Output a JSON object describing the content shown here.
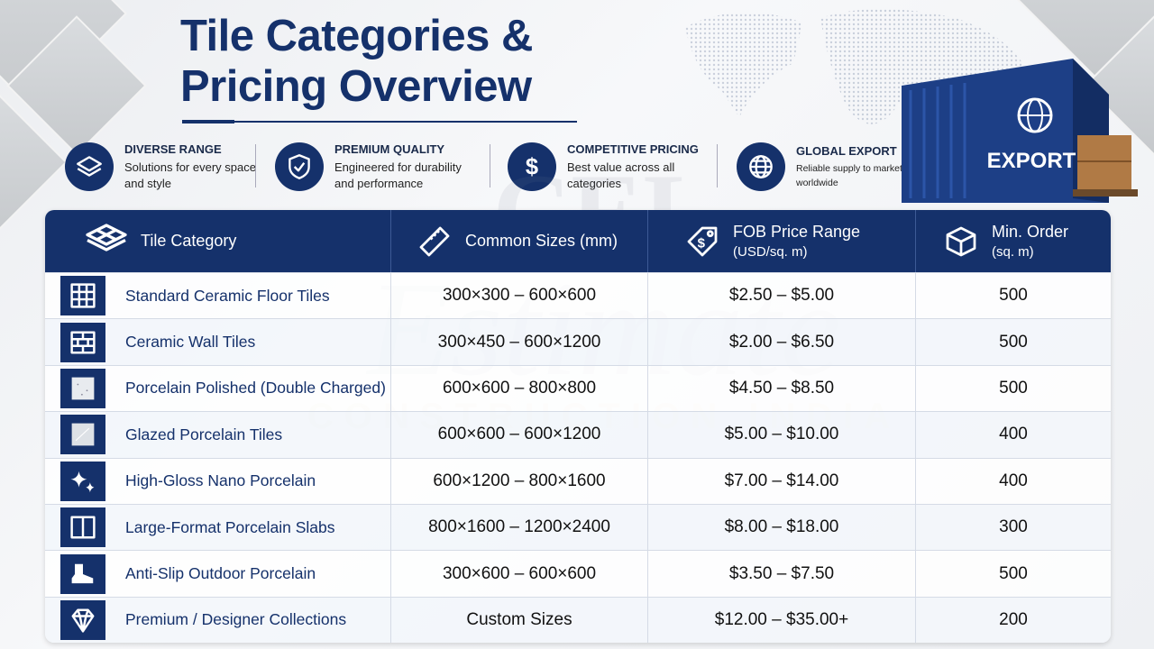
{
  "header": {
    "title": "Tile Categories & Pricing Overview"
  },
  "features": [
    {
      "title": "DIVERSE RANGE",
      "text": "Solutions for every space and style"
    },
    {
      "title": "PREMIUM QUALITY",
      "text": "Engineered for durability and performance"
    },
    {
      "title": "COMPETITIVE PRICING",
      "text": "Best value across all categories"
    },
    {
      "title": "GLOBAL EXPORT",
      "text": "Reliable supply to markets worldwide"
    }
  ],
  "container_label": "EXPORT",
  "watermark": {
    "brand": "CEL",
    "name": "Estimate",
    "tagline": "CONSTRUCTION INDIA"
  },
  "table": {
    "headers": [
      {
        "title": "Tile Category"
      },
      {
        "title": "Common Sizes (mm)"
      },
      {
        "title": "FOB Price Range",
        "sub": "(USD/sq. m)"
      },
      {
        "title": "Min. Order",
        "sub": "(sq. m)"
      }
    ],
    "rows": [
      [
        "Standard Ceramic Floor Tiles",
        "300×300 – 600×600",
        "$2.50 – $5.00",
        500
      ],
      [
        "Ceramic Wall Tiles",
        "300×450 – 600×1200",
        "$2.00 – $6.50",
        500
      ],
      [
        "Porcelain Polished (Double Charged)",
        "600×600 – 800×800",
        "$4.50 – $8.50",
        500
      ],
      [
        "Glazed Porcelain Tiles",
        "600×600 – 600×1200",
        "$5.00 – $10.00",
        400
      ],
      [
        "High-Gloss Nano Porcelain",
        "600×1200 – 800×1600",
        "$7.00 – $14.00",
        400
      ],
      [
        "Large-Format Porcelain Slabs",
        "800×1600 – 1200×2400",
        "$8.00 – $18.00",
        300
      ],
      [
        "Anti-Slip Outdoor Porcelain",
        "300×600 – 600×600",
        "$3.50 – $7.50",
        500
      ],
      [
        "Premium / Designer Collections",
        "Custom Sizes",
        "$12.00 – $35.00+",
        200
      ]
    ]
  }
}
